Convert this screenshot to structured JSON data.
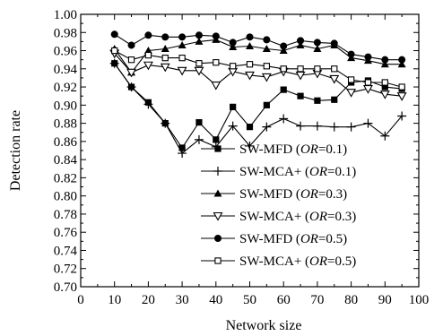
{
  "chart_data": {
    "type": "line",
    "xlabel": "Network size",
    "ylabel": "Detection rate",
    "xlim": [
      0,
      100
    ],
    "ylim": [
      0.7,
      1.0
    ],
    "xticks": [
      0,
      10,
      20,
      30,
      40,
      50,
      60,
      70,
      80,
      90,
      100
    ],
    "xtick_labels": [
      "0",
      "10",
      "20",
      "30",
      "40",
      "50",
      "60",
      "70",
      "80",
      "90",
      "100"
    ],
    "yticks": [
      0.7,
      0.72,
      0.74,
      0.76,
      0.78,
      0.8,
      0.82,
      0.84,
      0.86,
      0.88,
      0.9,
      0.92,
      0.94,
      0.96,
      0.98,
      1.0
    ],
    "ytick_labels": [
      "0.70",
      "0.72",
      "0.74",
      "0.76",
      "0.78",
      "0.80",
      "0.82",
      "0.84",
      "0.86",
      "0.88",
      "0.90",
      "0.92",
      "0.94",
      "0.96",
      "0.98",
      "1.00"
    ],
    "grid": false,
    "legend_position": "bottom-right",
    "x": [
      10,
      15,
      20,
      25,
      30,
      35,
      40,
      45,
      50,
      55,
      60,
      65,
      70,
      75,
      80,
      85,
      90,
      95
    ],
    "series": [
      {
        "name_main": "SW-MFD (",
        "name_italic": "OR",
        "name_tail": "=0.1)",
        "marker": "filled-square",
        "color": "#000000",
        "values": [
          0.946,
          0.92,
          0.903,
          0.88,
          0.853,
          0.881,
          0.862,
          0.898,
          0.876,
          0.9,
          0.917,
          0.91,
          0.905,
          0.906,
          0.925,
          0.927,
          0.92,
          0.918
        ]
      },
      {
        "name_main": "SW-MCA+ (",
        "name_italic": "OR",
        "name_tail": "=0.1)",
        "marker": "plus",
        "color": "#000000",
        "values": [
          0.946,
          0.92,
          0.901,
          0.88,
          0.847,
          0.862,
          0.854,
          0.877,
          0.855,
          0.876,
          0.885,
          0.877,
          0.877,
          0.876,
          0.876,
          0.88,
          0.866,
          0.888
        ]
      },
      {
        "name_main": "SW-MFD (",
        "name_italic": "OR",
        "name_tail": "=0.3)",
        "marker": "filled-triangle",
        "color": "#000000",
        "values": [
          0.962,
          0.936,
          0.96,
          0.962,
          0.966,
          0.97,
          0.972,
          0.964,
          0.965,
          0.962,
          0.96,
          0.966,
          0.962,
          0.966,
          0.952,
          0.949,
          0.945,
          0.945
        ]
      },
      {
        "name_main": "SW-MCA+ (",
        "name_italic": "OR",
        "name_tail": "=0.3)",
        "marker": "open-triangle-down",
        "color": "#000000",
        "values": [
          0.957,
          0.936,
          0.944,
          0.942,
          0.938,
          0.938,
          0.922,
          0.937,
          0.933,
          0.931,
          0.937,
          0.933,
          0.935,
          0.929,
          0.914,
          0.918,
          0.912,
          0.91
        ]
      },
      {
        "name_main": "SW-MFD (",
        "name_italic": "OR",
        "name_tail": "=0.5)",
        "marker": "filled-circle",
        "color": "#000000",
        "values": [
          0.978,
          0.966,
          0.977,
          0.975,
          0.975,
          0.977,
          0.976,
          0.969,
          0.975,
          0.972,
          0.965,
          0.971,
          0.969,
          0.968,
          0.956,
          0.953,
          0.95,
          0.95
        ]
      },
      {
        "name_main": "SW-MCA+ (",
        "name_italic": "OR",
        "name_tail": "=0.5)",
        "marker": "open-square",
        "color": "#000000",
        "values": [
          0.96,
          0.95,
          0.955,
          0.952,
          0.952,
          0.946,
          0.947,
          0.943,
          0.945,
          0.943,
          0.94,
          0.94,
          0.94,
          0.94,
          0.928,
          0.925,
          0.925,
          0.92
        ]
      }
    ]
  }
}
